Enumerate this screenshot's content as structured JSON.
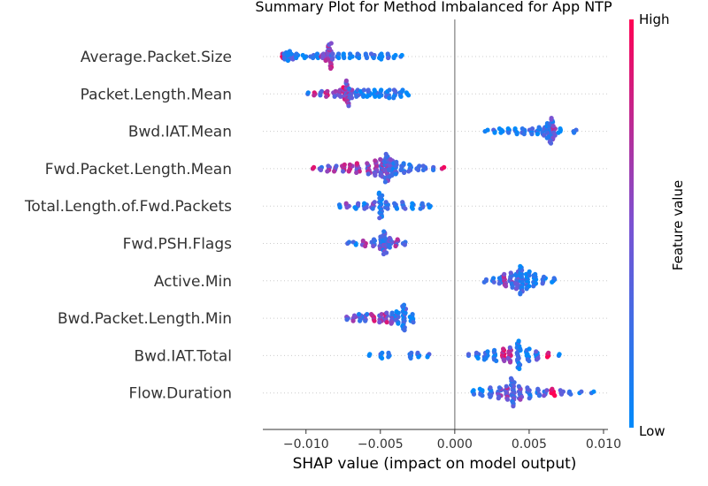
{
  "chart_data": {
    "type": "scatter",
    "subtype": "shap-beeswarm-summary",
    "title": "Summary Plot for Method Imbalanced for App NTP",
    "xlabel": "SHAP value (impact on model output)",
    "xlim": [
      -0.0129,
      0.0103
    ],
    "xticks": [
      {
        "value": -0.01,
        "label": "−0.010"
      },
      {
        "value": -0.005,
        "label": "−0.005"
      },
      {
        "value": 0.0,
        "label": "0.000"
      },
      {
        "value": 0.005,
        "label": "0.005"
      },
      {
        "value": 0.01,
        "label": "0.010"
      }
    ],
    "zero_line": 0,
    "colorbar": {
      "label": "Feature value",
      "high_label": "High",
      "low_label": "Low",
      "low_color": "#008afb",
      "high_color": "#ff0053"
    },
    "features": [
      {
        "name": "Average.Packet.Size",
        "bins": [
          {
            "x": -0.0115,
            "n": 4,
            "c": 0.9
          },
          {
            "x": -0.0114,
            "n": 6,
            "c": 0.1
          },
          {
            "x": -0.0112,
            "n": 8,
            "c": 0.1
          },
          {
            "x": -0.0109,
            "n": 5,
            "c": 0.2
          },
          {
            "x": -0.0106,
            "n": 4,
            "c": 0.1
          },
          {
            "x": -0.0101,
            "n": 3,
            "c": 0.1
          },
          {
            "x": -0.0096,
            "n": 3,
            "c": 0.2
          },
          {
            "x": -0.0092,
            "n": 4,
            "c": 0.1
          },
          {
            "x": -0.0089,
            "n": 4,
            "c": 0.6
          },
          {
            "x": -0.0086,
            "n": 8,
            "c": 0.5
          },
          {
            "x": -0.0084,
            "n": 20,
            "c": 0.6
          },
          {
            "x": -0.0082,
            "n": 5,
            "c": 0.3
          },
          {
            "x": -0.0079,
            "n": 4,
            "c": 0.1
          },
          {
            "x": -0.0075,
            "n": 4,
            "c": 0.1
          },
          {
            "x": -0.007,
            "n": 4,
            "c": 0.1
          },
          {
            "x": -0.0065,
            "n": 4,
            "c": 0.1
          },
          {
            "x": -0.006,
            "n": 4,
            "c": 0.1
          },
          {
            "x": -0.0055,
            "n": 4,
            "c": 0.1
          },
          {
            "x": -0.005,
            "n": 5,
            "c": 0.1
          },
          {
            "x": -0.0045,
            "n": 4,
            "c": 0.1
          },
          {
            "x": -0.004,
            "n": 3,
            "c": 0.1
          },
          {
            "x": -0.0036,
            "n": 2,
            "c": 0.1
          }
        ]
      },
      {
        "name": "Packet.Length.Mean",
        "bins": [
          {
            "x": -0.0098,
            "n": 2,
            "c": 0.2
          },
          {
            "x": -0.0094,
            "n": 3,
            "c": 0.8
          },
          {
            "x": -0.009,
            "n": 4,
            "c": 0.3
          },
          {
            "x": -0.0086,
            "n": 5,
            "c": 0.9
          },
          {
            "x": -0.0081,
            "n": 5,
            "c": 0.4
          },
          {
            "x": -0.0077,
            "n": 6,
            "c": 0.5
          },
          {
            "x": -0.0074,
            "n": 10,
            "c": 0.7
          },
          {
            "x": -0.0072,
            "n": 20,
            "c": 0.5
          },
          {
            "x": -0.007,
            "n": 8,
            "c": 0.4
          },
          {
            "x": -0.0066,
            "n": 6,
            "c": 0.2
          },
          {
            "x": -0.0062,
            "n": 6,
            "c": 0.1
          },
          {
            "x": -0.0058,
            "n": 6,
            "c": 0.1
          },
          {
            "x": -0.0054,
            "n": 6,
            "c": 0.1
          },
          {
            "x": -0.005,
            "n": 6,
            "c": 0.1
          },
          {
            "x": -0.0045,
            "n": 7,
            "c": 0.1
          },
          {
            "x": -0.004,
            "n": 7,
            "c": 0.1
          },
          {
            "x": -0.0036,
            "n": 6,
            "c": 0.1
          },
          {
            "x": -0.0032,
            "n": 3,
            "c": 0.1
          }
        ]
      },
      {
        "name": "Bwd.IAT.Mean",
        "bins": [
          {
            "x": 0.0021,
            "n": 2,
            "c": 0.1
          },
          {
            "x": 0.0026,
            "n": 3,
            "c": 0.1
          },
          {
            "x": 0.0031,
            "n": 4,
            "c": 0.1
          },
          {
            "x": 0.0036,
            "n": 4,
            "c": 0.1
          },
          {
            "x": 0.0041,
            "n": 5,
            "c": 0.1
          },
          {
            "x": 0.0046,
            "n": 5,
            "c": 0.1
          },
          {
            "x": 0.0051,
            "n": 5,
            "c": 0.1
          },
          {
            "x": 0.0056,
            "n": 6,
            "c": 0.1
          },
          {
            "x": 0.006,
            "n": 7,
            "c": 0.2
          },
          {
            "x": 0.0063,
            "n": 12,
            "c": 0.2
          },
          {
            "x": 0.0065,
            "n": 20,
            "c": 0.3
          },
          {
            "x": 0.0067,
            "n": 8,
            "c": 0.6
          },
          {
            "x": 0.007,
            "n": 4,
            "c": 0.1
          },
          {
            "x": 0.0081,
            "n": 3,
            "c": 0.1
          }
        ]
      },
      {
        "name": "Fwd.Packet.Length.Mean",
        "bins": [
          {
            "x": -0.0095,
            "n": 2,
            "c": 0.9
          },
          {
            "x": -0.009,
            "n": 3,
            "c": 0.3
          },
          {
            "x": -0.0085,
            "n": 5,
            "c": 0.6
          },
          {
            "x": -0.008,
            "n": 5,
            "c": 0.5
          },
          {
            "x": -0.0075,
            "n": 6,
            "c": 0.6
          },
          {
            "x": -0.007,
            "n": 6,
            "c": 0.7
          },
          {
            "x": -0.0065,
            "n": 8,
            "c": 0.6
          },
          {
            "x": -0.0058,
            "n": 9,
            "c": 0.5
          },
          {
            "x": -0.0053,
            "n": 12,
            "c": 0.5
          },
          {
            "x": -0.0049,
            "n": 14,
            "c": 0.5
          },
          {
            "x": -0.0046,
            "n": 22,
            "c": 0.4
          },
          {
            "x": -0.0043,
            "n": 14,
            "c": 0.3
          },
          {
            "x": -0.004,
            "n": 10,
            "c": 0.2
          },
          {
            "x": -0.0035,
            "n": 8,
            "c": 0.1
          },
          {
            "x": -0.003,
            "n": 6,
            "c": 0.1
          },
          {
            "x": -0.0025,
            "n": 4,
            "c": 0.1
          },
          {
            "x": -0.002,
            "n": 4,
            "c": 0.2
          },
          {
            "x": -0.0015,
            "n": 3,
            "c": 0.2
          },
          {
            "x": -0.0008,
            "n": 2,
            "c": 0.95
          }
        ]
      },
      {
        "name": "Total.Length.of.Fwd.Packets",
        "bins": [
          {
            "x": -0.0077,
            "n": 3,
            "c": 0.1
          },
          {
            "x": -0.0072,
            "n": 4,
            "c": 0.4
          },
          {
            "x": -0.0066,
            "n": 5,
            "c": 0.2
          },
          {
            "x": -0.006,
            "n": 5,
            "c": 0.2
          },
          {
            "x": -0.0055,
            "n": 6,
            "c": 0.4
          },
          {
            "x": -0.005,
            "n": 20,
            "c": 0.2
          },
          {
            "x": -0.0046,
            "n": 6,
            "c": 0.1
          },
          {
            "x": -0.004,
            "n": 5,
            "c": 0.2
          },
          {
            "x": -0.0034,
            "n": 6,
            "c": 0.2
          },
          {
            "x": -0.0028,
            "n": 5,
            "c": 0.1
          },
          {
            "x": -0.0022,
            "n": 5,
            "c": 0.1
          },
          {
            "x": -0.0017,
            "n": 3,
            "c": 0.1
          }
        ]
      },
      {
        "name": "Fwd.PSH.Flags",
        "bins": [
          {
            "x": -0.0072,
            "n": 2,
            "c": 0.1
          },
          {
            "x": -0.0067,
            "n": 3,
            "c": 0.1
          },
          {
            "x": -0.0061,
            "n": 5,
            "c": 0.6
          },
          {
            "x": -0.0055,
            "n": 6,
            "c": 0.3
          },
          {
            "x": -0.005,
            "n": 10,
            "c": 0.3
          },
          {
            "x": -0.0047,
            "n": 18,
            "c": 0.3
          },
          {
            "x": -0.0043,
            "n": 8,
            "c": 0.3
          },
          {
            "x": -0.0039,
            "n": 6,
            "c": 0.5
          },
          {
            "x": -0.0034,
            "n": 3,
            "c": 0.2
          }
        ]
      },
      {
        "name": "Active.Min",
        "bins": [
          {
            "x": 0.0021,
            "n": 3,
            "c": 0.1
          },
          {
            "x": 0.0026,
            "n": 4,
            "c": 0.1
          },
          {
            "x": 0.0031,
            "n": 6,
            "c": 0.2
          },
          {
            "x": 0.0034,
            "n": 10,
            "c": 0.6
          },
          {
            "x": 0.0038,
            "n": 12,
            "c": 0.4
          },
          {
            "x": 0.0042,
            "n": 14,
            "c": 0.3
          },
          {
            "x": 0.0045,
            "n": 22,
            "c": 0.2
          },
          {
            "x": 0.0049,
            "n": 14,
            "c": 0.1
          },
          {
            "x": 0.0054,
            "n": 10,
            "c": 0.1
          },
          {
            "x": 0.006,
            "n": 6,
            "c": 0.1
          },
          {
            "x": 0.0066,
            "n": 4,
            "c": 0.1
          }
        ]
      },
      {
        "name": "Bwd.Packet.Length.Min",
        "bins": [
          {
            "x": -0.0072,
            "n": 3,
            "c": 0.3
          },
          {
            "x": -0.0068,
            "n": 5,
            "c": 0.6
          },
          {
            "x": -0.0064,
            "n": 6,
            "c": 0.2
          },
          {
            "x": -0.006,
            "n": 6,
            "c": 0.3
          },
          {
            "x": -0.0055,
            "n": 6,
            "c": 0.8
          },
          {
            "x": -0.005,
            "n": 7,
            "c": 0.5
          },
          {
            "x": -0.0046,
            "n": 8,
            "c": 0.6
          },
          {
            "x": -0.0042,
            "n": 9,
            "c": 0.4
          },
          {
            "x": -0.0039,
            "n": 10,
            "c": 0.2
          },
          {
            "x": -0.0034,
            "n": 20,
            "c": 0.2
          },
          {
            "x": -0.0029,
            "n": 7,
            "c": 0.1
          }
        ]
      },
      {
        "name": "Bwd.IAT.Total",
        "bins": [
          {
            "x": -0.0058,
            "n": 2,
            "c": 0.1
          },
          {
            "x": -0.005,
            "n": 5,
            "c": 0.2
          },
          {
            "x": -0.0044,
            "n": 4,
            "c": 0.1
          },
          {
            "x": -0.003,
            "n": 5,
            "c": 0.1
          },
          {
            "x": -0.0025,
            "n": 4,
            "c": 0.2
          },
          {
            "x": -0.0018,
            "n": 3,
            "c": 0.1
          },
          {
            "x": 0.0009,
            "n": 2,
            "c": 0.1
          },
          {
            "x": 0.0015,
            "n": 5,
            "c": 0.1
          },
          {
            "x": 0.0021,
            "n": 7,
            "c": 0.1
          },
          {
            "x": 0.0027,
            "n": 9,
            "c": 0.1
          },
          {
            "x": 0.0033,
            "n": 10,
            "c": 0.8
          },
          {
            "x": 0.0037,
            "n": 12,
            "c": 0.6
          },
          {
            "x": 0.0043,
            "n": 22,
            "c": 0.2
          },
          {
            "x": 0.0049,
            "n": 10,
            "c": 0.1
          },
          {
            "x": 0.0055,
            "n": 7,
            "c": 0.2
          },
          {
            "x": 0.0063,
            "n": 4,
            "c": 0.9
          },
          {
            "x": 0.007,
            "n": 2,
            "c": 0.1
          }
        ]
      },
      {
        "name": "Flow.Duration",
        "bins": [
          {
            "x": 0.0012,
            "n": 4,
            "c": 0.1
          },
          {
            "x": 0.0018,
            "n": 6,
            "c": 0.1
          },
          {
            "x": 0.0024,
            "n": 8,
            "c": 0.2
          },
          {
            "x": 0.003,
            "n": 9,
            "c": 0.4
          },
          {
            "x": 0.0035,
            "n": 11,
            "c": 0.6
          },
          {
            "x": 0.0039,
            "n": 22,
            "c": 0.3
          },
          {
            "x": 0.0044,
            "n": 11,
            "c": 0.4
          },
          {
            "x": 0.005,
            "n": 9,
            "c": 0.3
          },
          {
            "x": 0.0056,
            "n": 6,
            "c": 0.2
          },
          {
            "x": 0.0061,
            "n": 5,
            "c": 0.3
          },
          {
            "x": 0.0066,
            "n": 6,
            "c": 0.9
          },
          {
            "x": 0.0072,
            "n": 4,
            "c": 0.6
          },
          {
            "x": 0.0078,
            "n": 3,
            "c": 0.2
          },
          {
            "x": 0.0084,
            "n": 2,
            "c": 0.1
          },
          {
            "x": 0.0093,
            "n": 2,
            "c": 0.1
          }
        ]
      }
    ]
  }
}
